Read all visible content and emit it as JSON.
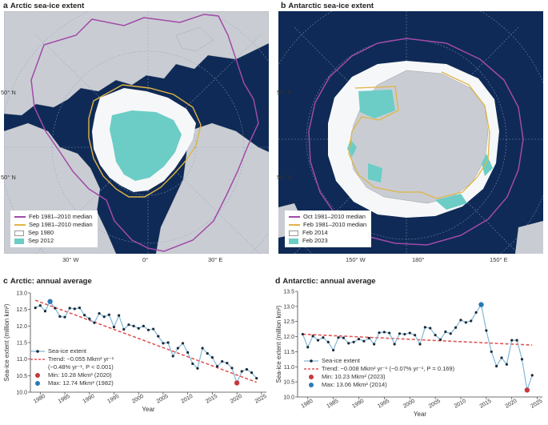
{
  "panels": {
    "a": {
      "letter": "a",
      "title": "Arctic sea-ice extent"
    },
    "b": {
      "letter": "b",
      "title": "Antarctic sea-ice extent"
    },
    "c": {
      "letter": "c",
      "title": "Arctic: annual average"
    },
    "d": {
      "letter": "d",
      "title": "Antarctic: annual average"
    }
  },
  "maps": {
    "arctic": {
      "lat_labels": [
        "50° N",
        "50° N"
      ],
      "lon_labels": [
        "30° W",
        "0°",
        "30° E"
      ],
      "legend": [
        {
          "label": "Feb 1981–2010 median",
          "kind": "line",
          "color": "#a24aa8"
        },
        {
          "label": "Sep 1981–2010 median",
          "kind": "line",
          "color": "#e0b446"
        },
        {
          "label": "Sep 1980",
          "kind": "box",
          "color": "#ffffff"
        },
        {
          "label": "Sep 2012",
          "kind": "box",
          "color": "#6bcdc6"
        }
      ]
    },
    "antarctic": {
      "lat_labels": [
        "50° S",
        "50° S"
      ],
      "lon_labels": [
        "150° W",
        "180°",
        "150° E"
      ],
      "legend": [
        {
          "label": "Oct 1981–2010 median",
          "kind": "line",
          "color": "#a24aa8"
        },
        {
          "label": "Feb 1981–2010 median",
          "kind": "line",
          "color": "#e0b446"
        },
        {
          "label": "Feb 2014",
          "kind": "box",
          "color": "#ffffff"
        },
        {
          "label": "Feb 2023",
          "kind": "box",
          "color": "#6bcdc6"
        }
      ]
    }
  },
  "colors": {
    "ocean": "#0f2a56",
    "land": "#c9cdd3",
    "series": "#7fb8d8",
    "point": "#1b2a3a",
    "trend": "#e05656",
    "min": "#c5383f",
    "max": "#2a7ab6"
  },
  "chart_data": [
    {
      "type": "line",
      "xlabel": "Year",
      "ylabel": "Sea-ice extent (million km²)",
      "xlim": [
        1978,
        2026
      ],
      "ylim": [
        10.0,
        13.0
      ],
      "xticks": [
        1980,
        1985,
        1990,
        1995,
        2000,
        2005,
        2010,
        2015,
        2020,
        2025
      ],
      "yticks": [
        10.0,
        10.5,
        11.0,
        11.5,
        12.0,
        12.5,
        13.0
      ],
      "grid": false,
      "legend_position": "bottom-left",
      "series": [
        {
          "name": "Sea-ice extent",
          "x": [
            1979,
            1980,
            1981,
            1982,
            1983,
            1984,
            1985,
            1986,
            1987,
            1988,
            1989,
            1990,
            1991,
            1992,
            1993,
            1994,
            1995,
            1996,
            1997,
            1998,
            1999,
            2000,
            2001,
            2002,
            2003,
            2004,
            2005,
            2006,
            2007,
            2008,
            2009,
            2010,
            2011,
            2012,
            2013,
            2014,
            2015,
            2016,
            2017,
            2018,
            2019,
            2020,
            2021,
            2022,
            2023,
            2024
          ],
          "values": [
            12.55,
            12.62,
            12.45,
            12.74,
            12.54,
            12.29,
            12.27,
            12.54,
            12.52,
            12.55,
            12.33,
            12.22,
            12.1,
            12.38,
            12.28,
            12.34,
            11.97,
            12.32,
            11.9,
            12.04,
            12.0,
            11.93,
            12.0,
            11.88,
            11.91,
            11.69,
            11.48,
            11.5,
            11.09,
            11.33,
            11.48,
            11.2,
            10.86,
            10.72,
            11.33,
            11.17,
            11.05,
            10.78,
            10.93,
            10.88,
            10.73,
            10.28,
            10.63,
            10.69,
            10.59,
            10.42
          ]
        }
      ],
      "trend": {
        "label_line1": "Trend: −0.055 Mkm² yr⁻¹",
        "label_line2": "(−0.48% yr⁻¹, P < 0.001)",
        "x": [
          1979,
          2024
        ],
        "values": [
          12.78,
          10.3
        ]
      },
      "min": {
        "label": "Min: 10.28 Mkm² (2020)",
        "x": 2020,
        "value": 10.28
      },
      "max": {
        "label": "Max: 12.74 Mkm² (1982)",
        "x": 1982,
        "value": 12.74
      }
    },
    {
      "type": "line",
      "xlabel": "Year",
      "ylabel": "Sea-ice extent (million km²)",
      "xlim": [
        1978,
        2026
      ],
      "ylim": [
        10.0,
        13.5
      ],
      "xticks": [
        1980,
        1985,
        1990,
        1995,
        2000,
        2005,
        2010,
        2015,
        2020,
        2025
      ],
      "yticks": [
        10.0,
        10.5,
        11.0,
        11.5,
        12.0,
        12.5,
        13.0,
        13.5
      ],
      "grid": false,
      "legend_position": "bottom-left",
      "series": [
        {
          "name": "Sea-ice extent",
          "x": [
            1979,
            1980,
            1981,
            1982,
            1983,
            1984,
            1985,
            1986,
            1987,
            1988,
            1989,
            1990,
            1991,
            1992,
            1993,
            1994,
            1995,
            1996,
            1997,
            1998,
            1999,
            2000,
            2001,
            2002,
            2003,
            2004,
            2005,
            2006,
            2007,
            2008,
            2009,
            2010,
            2011,
            2012,
            2013,
            2014,
            2015,
            2016,
            2017,
            2018,
            2019,
            2020,
            2021,
            2022,
            2023,
            2024
          ],
          "values": [
            12.08,
            11.65,
            12.02,
            11.88,
            11.97,
            11.82,
            11.55,
            11.97,
            11.96,
            11.78,
            11.82,
            11.92,
            11.85,
            11.95,
            11.75,
            12.13,
            12.15,
            12.12,
            11.75,
            12.1,
            12.08,
            12.12,
            12.05,
            11.75,
            12.31,
            12.28,
            12.05,
            11.9,
            12.16,
            12.1,
            12.3,
            12.55,
            12.47,
            12.52,
            12.8,
            13.06,
            12.2,
            11.5,
            11.02,
            11.3,
            11.08,
            11.88,
            11.88,
            11.25,
            10.23,
            10.72
          ]
        }
      ],
      "trend": {
        "label_line1": "Trend: −0.008 Mkm² yr⁻¹ (−0.07% yr⁻¹, P = 0.169)",
        "label_line2": "",
        "x": [
          1979,
          2024
        ],
        "values": [
          12.08,
          11.72
        ]
      },
      "min": {
        "label": "Min: 10.23 Mkm² (2023)",
        "x": 2023,
        "value": 10.23
      },
      "max": {
        "label": "Max: 13.06 Mkm² (2014)",
        "x": 2014,
        "value": 13.06
      }
    }
  ]
}
